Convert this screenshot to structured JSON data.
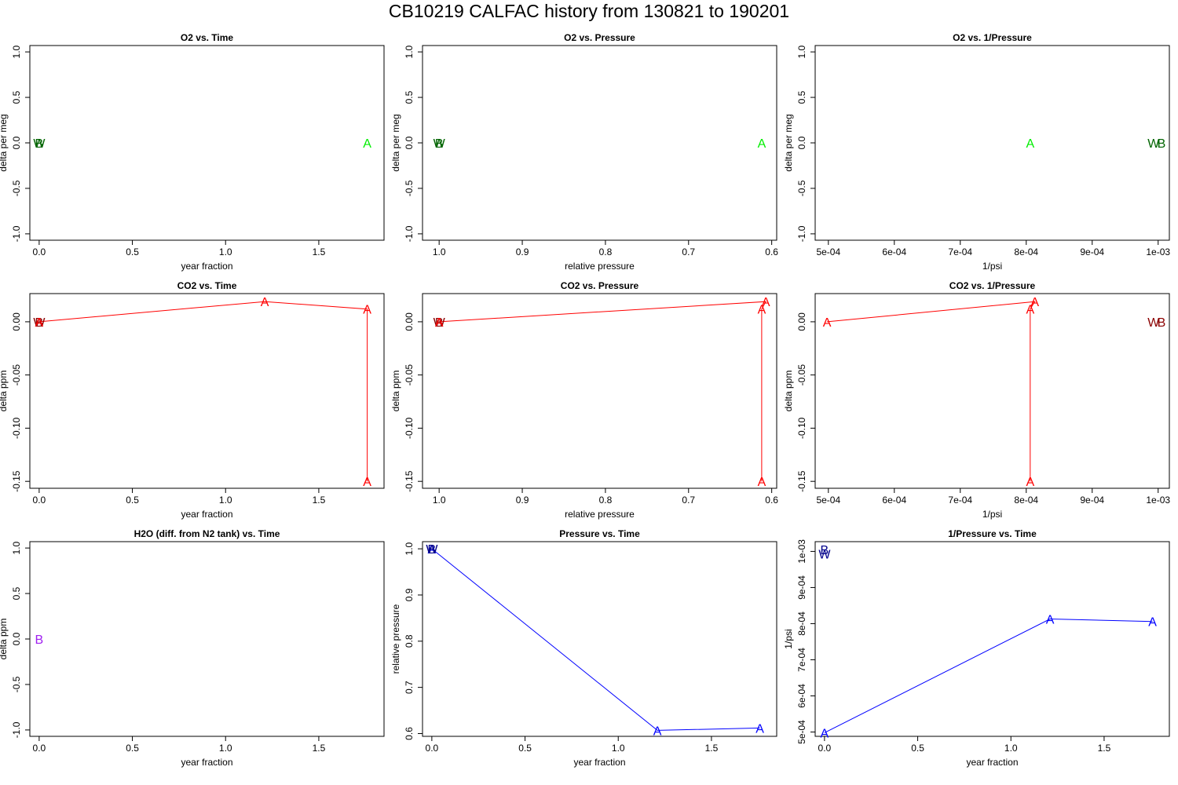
{
  "title": "CB10219   CALFAC history from  130821  to  190201",
  "colors": {
    "o2_light": "#00ee00",
    "o2_dark": "#006400",
    "co2_light": "#ff0000",
    "co2_dark": "#8b0000",
    "h2o": "#a020f0",
    "p_light": "#0000ff",
    "p_dark": "#00008b",
    "axis": "#000000"
  },
  "chart_data": [
    {
      "id": "o2-time",
      "type": "scatter",
      "title": "O2 vs. Time",
      "xlabel": "year fraction",
      "ylabel": "delta per meg",
      "xlim": [
        -0.05,
        1.85
      ],
      "ylim": [
        -1.07,
        1.07
      ],
      "xticks": [
        0,
        0.5,
        1,
        1.5
      ],
      "xtick_labels": [
        "0.0",
        "0.5",
        "1.0",
        "1.5"
      ],
      "yticks": [
        -1,
        -0.5,
        0,
        0.5,
        1
      ],
      "ytick_labels": [
        "-1.0",
        "-0.5",
        "0.0",
        "0.5",
        "1.0"
      ],
      "line": null,
      "points": [
        {
          "x": 0.0,
          "y": 0,
          "label": "W",
          "color": "o2_dark"
        },
        {
          "x": 0.0,
          "y": 0,
          "label": "B",
          "color": "o2_dark"
        },
        {
          "x": 1.76,
          "y": 0,
          "label": "A",
          "color": "o2_light"
        }
      ]
    },
    {
      "id": "o2-pressure",
      "type": "scatter",
      "title": "O2 vs. Pressure",
      "xlabel": "relative pressure",
      "ylabel": "delta per meg",
      "xlim": [
        1.02,
        0.594
      ],
      "ylim": [
        -1.07,
        1.07
      ],
      "xticks": [
        1.0,
        0.9,
        0.8,
        0.7,
        0.6
      ],
      "xtick_labels": [
        "1.0",
        "0.9",
        "0.8",
        "0.7",
        "0.6"
      ],
      "yticks": [
        -1,
        -0.5,
        0,
        0.5,
        1
      ],
      "ytick_labels": [
        "-1.0",
        "-0.5",
        "0.0",
        "0.5",
        "1.0"
      ],
      "line": null,
      "points": [
        {
          "x": 1.0,
          "y": 0,
          "label": "W",
          "color": "o2_dark"
        },
        {
          "x": 1.0,
          "y": 0,
          "label": "B",
          "color": "o2_dark"
        },
        {
          "x": 0.612,
          "y": 0,
          "label": "A",
          "color": "o2_light"
        }
      ]
    },
    {
      "id": "o2-invpressure",
      "type": "scatter",
      "title": "O2 vs. 1/Pressure",
      "xlabel": "1/psi",
      "ylabel": "delta per meg",
      "xlim": [
        0.00048,
        0.001017
      ],
      "ylim": [
        -1.07,
        1.07
      ],
      "xticks": [
        0.0005,
        0.0006,
        0.0007,
        0.0008,
        0.0009,
        0.001
      ],
      "xtick_labels": [
        "5e-04",
        "6e-04",
        "7e-04",
        "8e-04",
        "9e-04",
        "1e-03"
      ],
      "yticks": [
        -1,
        -0.5,
        0,
        0.5,
        1
      ],
      "ytick_labels": [
        "-1.0",
        "-0.5",
        "0.0",
        "0.5",
        "1.0"
      ],
      "line": null,
      "points": [
        {
          "x": 0.000806,
          "y": 0,
          "label": "A",
          "color": "o2_light"
        },
        {
          "x": 0.000993,
          "y": 0,
          "label": "W",
          "color": "o2_dark"
        },
        {
          "x": 0.001005,
          "y": 0,
          "label": "B",
          "color": "o2_dark"
        }
      ]
    },
    {
      "id": "co2-time",
      "type": "line",
      "title": "CO2 vs. Time",
      "xlabel": "year fraction",
      "ylabel": "delta ppm",
      "xlim": [
        -0.05,
        1.85
      ],
      "ylim": [
        -0.1565,
        0.0265
      ],
      "xticks": [
        0,
        0.5,
        1,
        1.5
      ],
      "xtick_labels": [
        "0.0",
        "0.5",
        "1.0",
        "1.5"
      ],
      "yticks": [
        -0.15,
        -0.1,
        -0.05,
        0
      ],
      "ytick_labels": [
        "-0.15",
        "-0.10",
        "-0.05",
        "0.00"
      ],
      "line": {
        "color": "co2_light",
        "points": [
          [
            0,
            0
          ],
          [
            1.21,
            0.019
          ],
          [
            1.76,
            0.012
          ],
          [
            1.76,
            -0.15
          ]
        ]
      },
      "points": [
        {
          "x": 0.0,
          "y": 0,
          "label": "W",
          "color": "co2_dark"
        },
        {
          "x": 0.0,
          "y": 0,
          "label": "B",
          "color": "co2_dark"
        },
        {
          "x": 0.0,
          "y": 0,
          "label": "A",
          "color": "co2_light"
        },
        {
          "x": 1.21,
          "y": 0.019,
          "label": "A",
          "color": "co2_light"
        },
        {
          "x": 1.76,
          "y": 0.012,
          "label": "A",
          "color": "co2_light"
        },
        {
          "x": 1.76,
          "y": -0.15,
          "label": "A",
          "color": "co2_light"
        }
      ]
    },
    {
      "id": "co2-pressure",
      "type": "line",
      "title": "CO2 vs. Pressure",
      "xlabel": "relative pressure",
      "ylabel": "delta ppm",
      "xlim": [
        1.02,
        0.594
      ],
      "ylim": [
        -0.1565,
        0.0265
      ],
      "xticks": [
        1.0,
        0.9,
        0.8,
        0.7,
        0.6
      ],
      "xtick_labels": [
        "1.0",
        "0.9",
        "0.8",
        "0.7",
        "0.6"
      ],
      "yticks": [
        -0.15,
        -0.1,
        -0.05,
        0
      ],
      "ytick_labels": [
        "-0.15",
        "-0.10",
        "-0.05",
        "0.00"
      ],
      "line": {
        "color": "co2_light",
        "points": [
          [
            1.0,
            0
          ],
          [
            0.607,
            0.019
          ],
          [
            0.612,
            0.012
          ],
          [
            0.612,
            -0.15
          ]
        ]
      },
      "points": [
        {
          "x": 1.0,
          "y": 0,
          "label": "W",
          "color": "co2_dark"
        },
        {
          "x": 1.0,
          "y": 0,
          "label": "B",
          "color": "co2_dark"
        },
        {
          "x": 1.0,
          "y": 0,
          "label": "A",
          "color": "co2_light"
        },
        {
          "x": 0.607,
          "y": 0.019,
          "label": "A",
          "color": "co2_light"
        },
        {
          "x": 0.612,
          "y": 0.012,
          "label": "A",
          "color": "co2_light"
        },
        {
          "x": 0.612,
          "y": -0.15,
          "label": "A",
          "color": "co2_light"
        }
      ]
    },
    {
      "id": "co2-invpressure",
      "type": "line",
      "title": "CO2 vs. 1/Pressure",
      "xlabel": "1/psi",
      "ylabel": "delta ppm",
      "xlim": [
        0.00048,
        0.001017
      ],
      "ylim": [
        -0.1565,
        0.0265
      ],
      "xticks": [
        0.0005,
        0.0006,
        0.0007,
        0.0008,
        0.0009,
        0.001
      ],
      "xtick_labels": [
        "5e-04",
        "6e-04",
        "7e-04",
        "8e-04",
        "9e-04",
        "1e-03"
      ],
      "yticks": [
        -0.15,
        -0.1,
        -0.05,
        0
      ],
      "ytick_labels": [
        "-0.15",
        "-0.10",
        "-0.05",
        "0.00"
      ],
      "line": {
        "color": "co2_light",
        "points": [
          [
            0.000498,
            0
          ],
          [
            0.000813,
            0.019
          ],
          [
            0.000806,
            0.012
          ],
          [
            0.000806,
            -0.15
          ]
        ]
      },
      "points": [
        {
          "x": 0.000498,
          "y": 0,
          "label": "A",
          "color": "co2_light"
        },
        {
          "x": 0.000813,
          "y": 0.019,
          "label": "A",
          "color": "co2_light"
        },
        {
          "x": 0.000806,
          "y": 0.012,
          "label": "A",
          "color": "co2_light"
        },
        {
          "x": 0.000806,
          "y": -0.15,
          "label": "A",
          "color": "co2_light"
        },
        {
          "x": 0.000993,
          "y": 0,
          "label": "W",
          "color": "co2_dark"
        },
        {
          "x": 0.001005,
          "y": 0,
          "label": "B",
          "color": "co2_dark"
        }
      ]
    },
    {
      "id": "h2o-time",
      "type": "scatter",
      "title": "H2O (diff. from N2 tank) vs. Time",
      "xlabel": "year fraction",
      "ylabel": "delta ppm",
      "xlim": [
        -0.05,
        1.85
      ],
      "ylim": [
        -1.07,
        1.07
      ],
      "xticks": [
        0,
        0.5,
        1,
        1.5
      ],
      "xtick_labels": [
        "0.0",
        "0.5",
        "1.0",
        "1.5"
      ],
      "yticks": [
        -1,
        -0.5,
        0,
        0.5,
        1
      ],
      "ytick_labels": [
        "-1.0",
        "-0.5",
        "0.0",
        "0.5",
        "1.0"
      ],
      "line": null,
      "points": [
        {
          "x": 0.0,
          "y": 0,
          "label": "B",
          "color": "h2o"
        }
      ]
    },
    {
      "id": "pressure-time",
      "type": "line",
      "title": "Pressure vs. Time",
      "xlabel": "year fraction",
      "ylabel": "relative pressure",
      "xlim": [
        -0.05,
        1.85
      ],
      "ylim": [
        0.594,
        1.0155
      ],
      "xticks": [
        0,
        0.5,
        1,
        1.5
      ],
      "xtick_labels": [
        "0.0",
        "0.5",
        "1.0",
        "1.5"
      ],
      "yticks": [
        0.6,
        0.7,
        0.8,
        0.9,
        1.0
      ],
      "ytick_labels": [
        "0.6",
        "0.7",
        "0.8",
        "0.9",
        "1.0"
      ],
      "line": {
        "color": "p_light",
        "points": [
          [
            0,
            1.0
          ],
          [
            1.21,
            0.607
          ],
          [
            1.76,
            0.612
          ]
        ]
      },
      "points": [
        {
          "x": 0.0,
          "y": 1.0,
          "label": "A",
          "color": "p_light"
        },
        {
          "x": 0.0,
          "y": 1.0,
          "label": "W",
          "color": "p_dark"
        },
        {
          "x": 0.0,
          "y": 1.0,
          "label": "B",
          "color": "p_dark"
        },
        {
          "x": 1.21,
          "y": 0.607,
          "label": "A",
          "color": "p_light"
        },
        {
          "x": 1.76,
          "y": 0.612,
          "label": "A",
          "color": "p_light"
        }
      ]
    },
    {
      "id": "invpressure-time",
      "type": "line",
      "title": "1/Pressure vs. Time",
      "xlabel": "year fraction",
      "ylabel": "1/psi",
      "xlim": [
        -0.05,
        1.85
      ],
      "ylim": [
        0.000488,
        0.001027
      ],
      "xticks": [
        0,
        0.5,
        1,
        1.5
      ],
      "xtick_labels": [
        "0.0",
        "0.5",
        "1.0",
        "1.5"
      ],
      "yticks": [
        0.0005,
        0.0006,
        0.0007,
        0.0008,
        0.0009,
        0.001
      ],
      "ytick_labels": [
        "5e-04",
        "6e-04",
        "7e-04",
        "8e-04",
        "9e-04",
        "1e-03"
      ],
      "line": {
        "color": "p_light",
        "points": [
          [
            0,
            0.000498
          ],
          [
            1.21,
            0.000813
          ],
          [
            1.76,
            0.000806
          ]
        ]
      },
      "points": [
        {
          "x": 0.0,
          "y": 0.000498,
          "label": "A",
          "color": "p_light"
        },
        {
          "x": 0.0,
          "y": 0.001005,
          "label": "B",
          "color": "p_dark"
        },
        {
          "x": 0.0,
          "y": 0.000993,
          "label": "W",
          "color": "p_dark"
        },
        {
          "x": 1.21,
          "y": 0.000813,
          "label": "A",
          "color": "p_light"
        },
        {
          "x": 1.76,
          "y": 0.000806,
          "label": "A",
          "color": "p_light"
        }
      ]
    }
  ]
}
